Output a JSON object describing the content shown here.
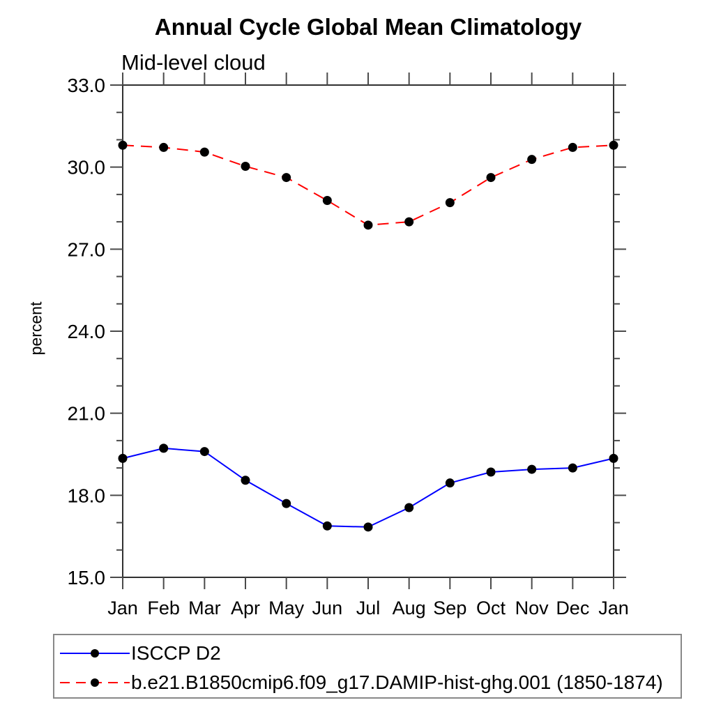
{
  "chart_data": {
    "type": "line",
    "title": "Annual Cycle Global Mean Climatology",
    "subtitle": "Mid-level cloud",
    "ylabel": "percent",
    "x": [
      "Jan",
      "Feb",
      "Mar",
      "Apr",
      "May",
      "Jun",
      "Jul",
      "Aug",
      "Sep",
      "Oct",
      "Nov",
      "Dec",
      "Jan"
    ],
    "ylim": [
      15.0,
      33.0
    ],
    "ytick_major_step": 3.0,
    "ytick_minor_step": 1.0,
    "ytick_labels": [
      "15.0",
      "18.0",
      "21.0",
      "24.0",
      "27.0",
      "30.0",
      "33.0"
    ],
    "grid": false,
    "legend_position": "bottom-left-box",
    "marker_color": "#000000",
    "series": [
      {
        "name": "ISCCP D2",
        "color": "#0000ff",
        "line_style": "solid",
        "marker": "filled-circle",
        "values": [
          19.35,
          19.72,
          19.6,
          18.55,
          17.7,
          16.88,
          16.84,
          17.55,
          18.45,
          18.85,
          18.95,
          19.0,
          19.35
        ]
      },
      {
        "name": "b.e21.B1850cmip6.f09_g17.DAMIP-hist-ghg.001 (1850-1874)",
        "color": "#ff0000",
        "line_style": "dashed",
        "marker": "filled-circle",
        "values": [
          30.8,
          30.72,
          30.55,
          30.03,
          29.62,
          28.78,
          27.88,
          28.0,
          28.7,
          29.62,
          30.28,
          30.72,
          30.8
        ]
      }
    ]
  }
}
